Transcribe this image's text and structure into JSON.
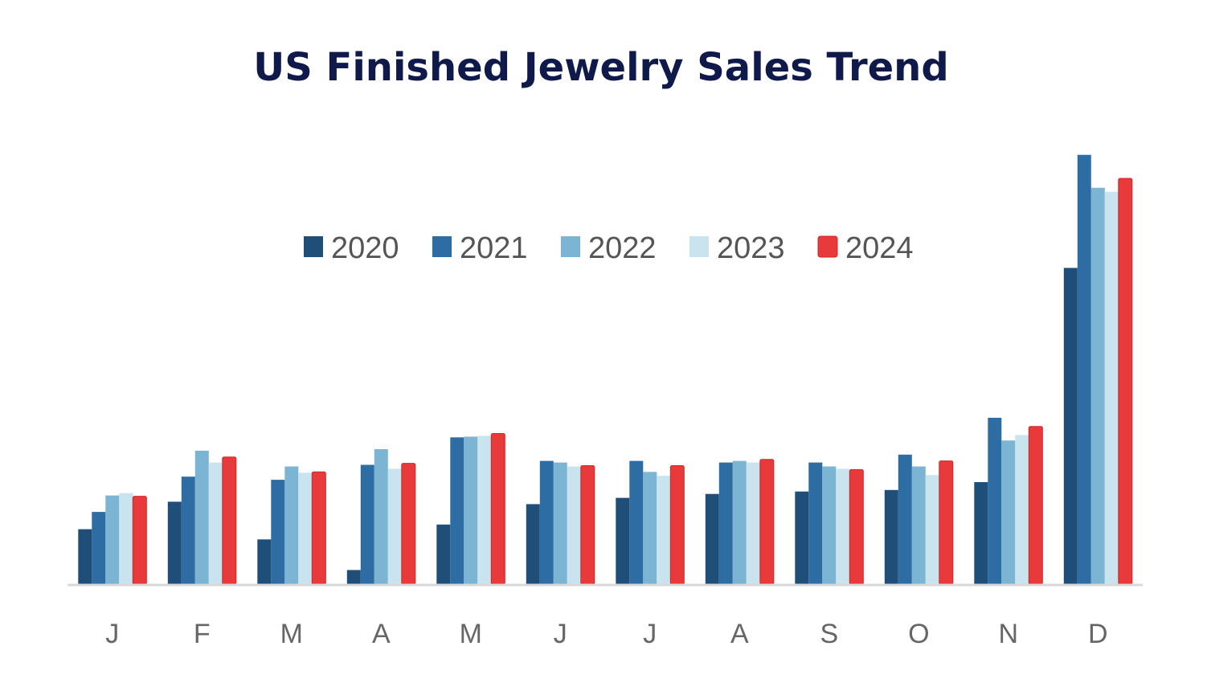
{
  "chart_data": {
    "type": "bar",
    "title": "US Finished Jewelry Sales Trend",
    "xlabel": "",
    "ylabel": "",
    "categories": [
      "J",
      "F",
      "M",
      "A",
      "M",
      "J",
      "J",
      "A",
      "S",
      "O",
      "N",
      "D"
    ],
    "series": [
      {
        "name": "2020",
        "color": "#1f4e79",
        "values": [
          70,
          105,
          57,
          18,
          76,
          102,
          110,
          115,
          118,
          120,
          130,
          403
        ]
      },
      {
        "name": "2021",
        "color": "#2e6da4",
        "values": [
          92,
          137,
          133,
          152,
          187,
          157,
          157,
          155,
          155,
          165,
          212,
          547
        ]
      },
      {
        "name": "2022",
        "color": "#7bb5d3",
        "values": [
          113,
          170,
          150,
          172,
          188,
          155,
          143,
          157,
          150,
          150,
          183,
          505
        ]
      },
      {
        "name": "2023",
        "color": "#c9e3ef",
        "values": [
          116,
          155,
          142,
          147,
          189,
          150,
          138,
          155,
          147,
          139,
          190,
          500
        ]
      },
      {
        "name": "2024",
        "color": "#e83a3a",
        "values": [
          112,
          162,
          143,
          154,
          192,
          151,
          151,
          159,
          146,
          157,
          201,
          517
        ]
      }
    ],
    "ylim": [
      0,
      560
    ],
    "grid": false,
    "legend": "top-center",
    "baseline_color": "#d9d9d9",
    "tick_label_color": "#666666",
    "legend_label_color": "#555555",
    "title_color": "#0f1a4a"
  }
}
